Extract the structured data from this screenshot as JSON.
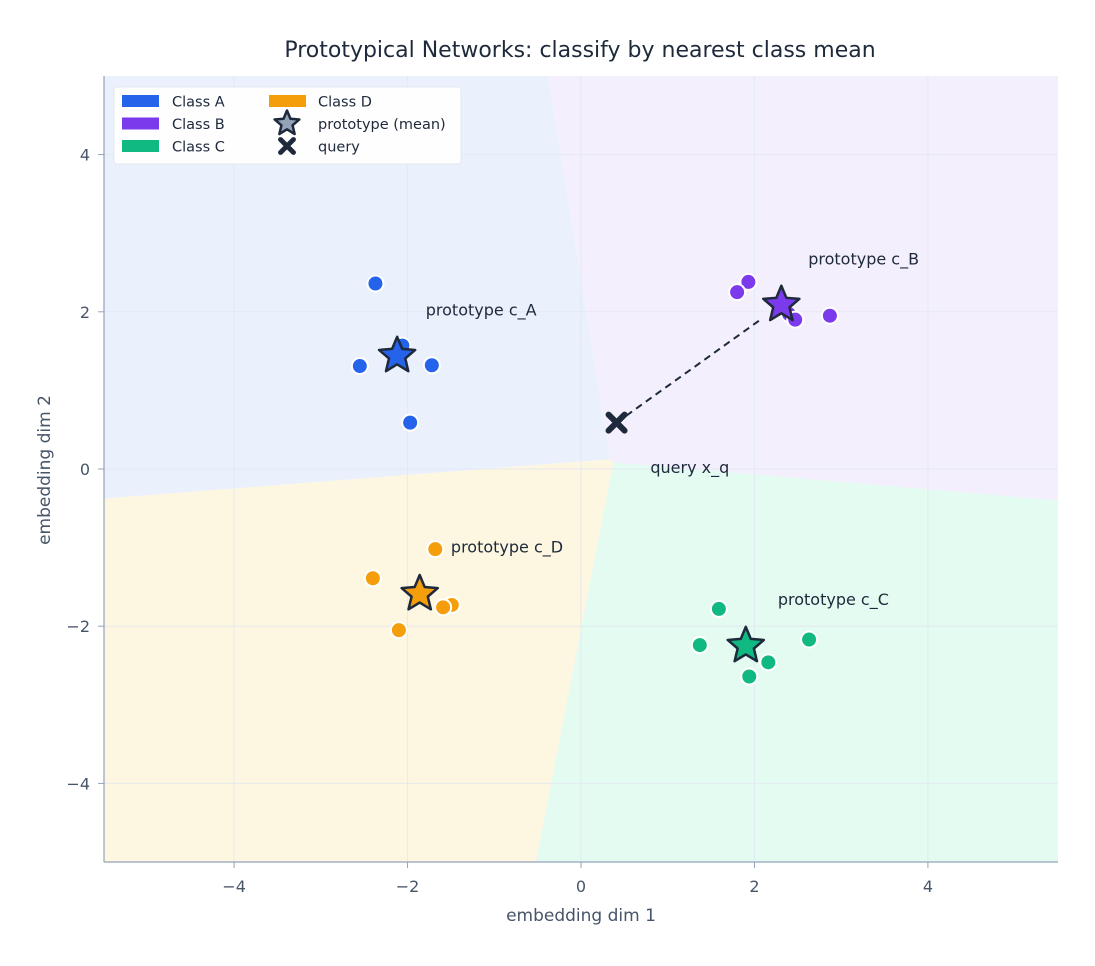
{
  "chart_data": {
    "type": "scatter",
    "title": "Prototypical Networks: classify by nearest class mean",
    "xlabel": "embedding dim 1",
    "ylabel": "embedding dim 2",
    "xlim": [
      -5.5,
      5.5
    ],
    "ylim": [
      -5,
      5
    ],
    "xticks": [
      -4,
      -2,
      0,
      2,
      4
    ],
    "yticks": [
      -4,
      -2,
      0,
      2,
      4
    ],
    "xtick_labels": [
      "−4",
      "−2",
      "0",
      "2",
      "4"
    ],
    "ytick_labels": [
      "−4",
      "−2",
      "0",
      "2",
      "4"
    ],
    "grid": true,
    "legend_position": "top-left",
    "background": "nearest-prototype decision regions",
    "classes": [
      {
        "name": "Class A",
        "color": "#2563eb",
        "region_color": "#eaf1fd",
        "points": [
          [
            -2.37,
            2.36
          ],
          [
            -2.06,
            1.57
          ],
          [
            -2.55,
            1.31
          ],
          [
            -1.72,
            1.32
          ],
          [
            -1.97,
            0.59
          ]
        ],
        "prototype": [
          -2.12,
          1.44
        ],
        "label": "prototype  c_A",
        "label_at": [
          -1.79,
          1.95
        ]
      },
      {
        "name": "Class B",
        "color": "#7c3aed",
        "region_color": "#f3effc",
        "points": [
          [
            1.93,
            2.38
          ],
          [
            1.8,
            2.25
          ],
          [
            2.4,
            1.97
          ],
          [
            2.47,
            1.9
          ],
          [
            2.87,
            1.95
          ]
        ],
        "prototype": [
          2.31,
          2.09
        ],
        "label": "prototype  c_B",
        "label_at": [
          2.62,
          2.6
        ]
      },
      {
        "name": "Class C",
        "color": "#10b981",
        "region_color": "#e3fbf0",
        "points": [
          [
            1.59,
            -1.78
          ],
          [
            1.37,
            -2.24
          ],
          [
            2.63,
            -2.17
          ],
          [
            2.16,
            -2.46
          ],
          [
            1.94,
            -2.64
          ]
        ],
        "prototype": [
          1.9,
          -2.25
        ],
        "label": "prototype  c_C",
        "label_at": [
          2.27,
          -1.73
        ]
      },
      {
        "name": "Class D",
        "color": "#f59e0b",
        "region_color": "#fdf6e0",
        "points": [
          [
            -1.68,
            -1.02
          ],
          [
            -2.4,
            -1.39
          ],
          [
            -1.49,
            -1.73
          ],
          [
            -1.59,
            -1.76
          ],
          [
            -2.1,
            -2.05
          ]
        ],
        "prototype": [
          -1.86,
          -1.59
        ],
        "label": "prototype  c_D",
        "label_at": [
          -1.5,
          -1.06
        ]
      }
    ],
    "query": {
      "point": [
        0.41,
        0.59
      ],
      "label": "query  x_q",
      "label_at": [
        0.8,
        -0.05
      ],
      "nearest": "Class B"
    },
    "legend": [
      "Class A",
      "Class B",
      "Class C",
      "Class D",
      "prototype (mean)",
      "query"
    ],
    "legend_star_color": "#94a3b8",
    "edge_color": "#1e293b"
  }
}
